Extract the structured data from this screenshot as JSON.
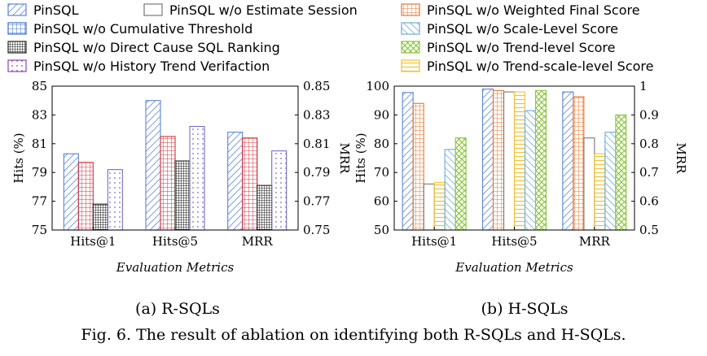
{
  "legend": [
    {
      "label": "PinSQL",
      "color": "#5a85d6",
      "pattern": "diag"
    },
    {
      "label": "PinSQL w/o Estimate Session",
      "color": "#777777",
      "pattern": "none"
    },
    {
      "label": "PinSQL w/o Weighted Final Score",
      "color": "#e8762c",
      "pattern": "grid"
    },
    {
      "label": "PinSQL w/o Cumulative Threshold",
      "color": "#3b6fd1",
      "pattern": "grid"
    },
    {
      "label": "PinSQL w/o Scale-Level Score",
      "color": "#6da9d6",
      "pattern": "revdiag"
    },
    {
      "label": "PinSQL w/o Direct Cause SQL Ranking",
      "color": "#222222",
      "pattern": "dense"
    },
    {
      "label": "PinSQL w/o Trend-level Score",
      "color": "#8cc63f",
      "pattern": "cross"
    },
    {
      "label": "PinSQL w/o History Trend Verifaction",
      "color": "#8e44ad",
      "pattern": "dots"
    },
    {
      "label": "PinSQL w/o Trend-scale-level Score",
      "color": "#f1c232",
      "pattern": "hlines"
    }
  ],
  "chart_data": [
    {
      "type": "bar",
      "subtitle": "(a)  R-SQLs",
      "xlabel": "Evaluation Metrics",
      "ylabel": "Hits (%)",
      "y2label": "MRR",
      "ylim": [
        75,
        85
      ],
      "yticks": [
        75,
        77,
        79,
        81,
        83,
        85
      ],
      "y2lim": [
        0.75,
        0.85
      ],
      "y2ticks": [
        "0.75",
        "0.77",
        "0.79",
        "0.81",
        "0.83",
        "0.85"
      ],
      "categories": [
        "Hits@1",
        "Hits@5",
        "MRR"
      ],
      "series": [
        {
          "name": "PinSQL",
          "values": [
            80.3,
            84.0,
            81.8
          ],
          "color": "#5a85d6",
          "pattern": "diag"
        },
        {
          "name": "PinSQL w/o Cumulative Threshold",
          "values": [
            79.7,
            81.5,
            81.4
          ],
          "color": "#d0353f",
          "pattern": "grid"
        },
        {
          "name": "PinSQL w/o Direct Cause SQL Ranking",
          "values": [
            76.8,
            79.8,
            78.1
          ],
          "color": "#222222",
          "pattern": "dense"
        },
        {
          "name": "PinSQL w/o History Trend Verifaction",
          "values": [
            79.2,
            82.2,
            80.5
          ],
          "color": "#7b68c8",
          "pattern": "dots"
        }
      ]
    },
    {
      "type": "bar",
      "subtitle": "(b)  H-SQLs",
      "xlabel": "Evaluation Metrics",
      "ylabel": "Hits (%)",
      "y2label": "MRR",
      "ylim": [
        50,
        100
      ],
      "yticks": [
        50,
        60,
        70,
        80,
        90,
        100
      ],
      "y2lim": [
        0.5,
        1
      ],
      "y2ticks": [
        "0.5",
        "0.6",
        "0.7",
        "0.8",
        "0.9",
        "1"
      ],
      "categories": [
        "Hits@1",
        "Hits@5",
        "MRR"
      ],
      "series": [
        {
          "name": "PinSQL",
          "values": [
            97.8,
            99.0,
            98.0
          ],
          "color": "#5a85d6",
          "pattern": "diag"
        },
        {
          "name": "PinSQL w/o Weighted Final Score",
          "values": [
            94.0,
            98.5,
            96.3
          ],
          "color": "#e8762c",
          "pattern": "grid"
        },
        {
          "name": "PinSQL w/o Estimate Session",
          "values": [
            66.0,
            98.0,
            82.0
          ],
          "color": "#777777",
          "pattern": "none"
        },
        {
          "name": "PinSQL w/o Trend-scale-level Score",
          "values": [
            66.5,
            98.0,
            76.5
          ],
          "color": "#f1c232",
          "pattern": "hlines"
        },
        {
          "name": "PinSQL w/o Scale-Level Score",
          "values": [
            78.0,
            91.5,
            84.0
          ],
          "color": "#6da9d6",
          "pattern": "revdiag"
        },
        {
          "name": "PinSQL w/o Trend-level Score",
          "values": [
            82.0,
            98.5,
            90.0
          ],
          "color": "#8cc63f",
          "pattern": "cross"
        }
      ]
    }
  ],
  "caption": "Fig. 6.  The result of ablation on identifying both R-SQLs and H-SQLs."
}
